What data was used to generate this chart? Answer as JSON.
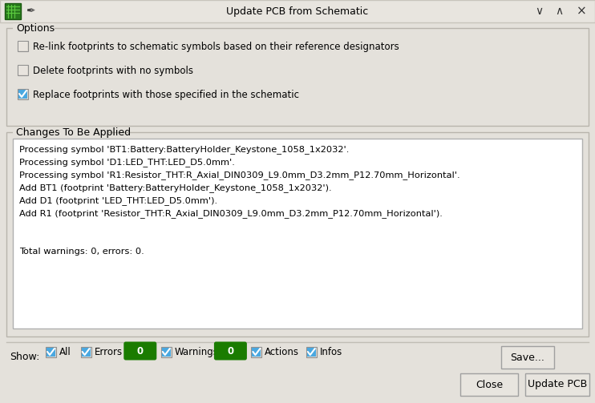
{
  "title": "Update PCB from Schematic",
  "bg_color": "#e4e1db",
  "dialog_bg": "#e4e1db",
  "white_bg": "#ffffff",
  "border_color": "#b0b0b0",
  "text_color": "#000000",
  "options_label": "Options",
  "checkboxes": [
    {
      "label": "Re-link footprints to schematic symbols based on their reference designators",
      "checked": false
    },
    {
      "label": "Delete footprints with no symbols",
      "checked": false
    },
    {
      "label": "Replace footprints with those specified in the schematic",
      "checked": true
    }
  ],
  "changes_label": "Changes To Be Applied",
  "log_lines": [
    "Processing symbol 'BT1:Battery:BatteryHolder_Keystone_1058_1x2032'.",
    "Processing symbol 'D1:LED_THT:LED_D5.0mm'.",
    "Processing symbol 'R1:Resistor_THT:R_Axial_DIN0309_L9.0mm_D3.2mm_P12.70mm_Horizontal'.",
    "Add BT1 (footprint 'Battery:BatteryHolder_Keystone_1058_1x2032').",
    "Add D1 (footprint 'LED_THT:LED_D5.0mm').",
    "Add R1 (footprint 'Resistor_THT:R_Axial_DIN0309_L9.0mm_D3.2mm_P12.70mm_Horizontal').",
    "",
    "",
    "Total warnings: 0, errors: 0."
  ],
  "show_label": "Show:",
  "green_pill_color": "#1a7c00",
  "green_pill_text": "#ffffff",
  "save_button": "Save...",
  "close_button": "Close",
  "update_button": "Update PCB",
  "checkbox_checked_color": "#4aa8e0",
  "checkbox_unchecked_color": "#e8e4de",
  "checkbox_border": "#9ab0c0",
  "title_bar_color": "#e8e5df",
  "title_bar_border": "#c8c4bc",
  "font_size": 9,
  "title_font_size": 9
}
